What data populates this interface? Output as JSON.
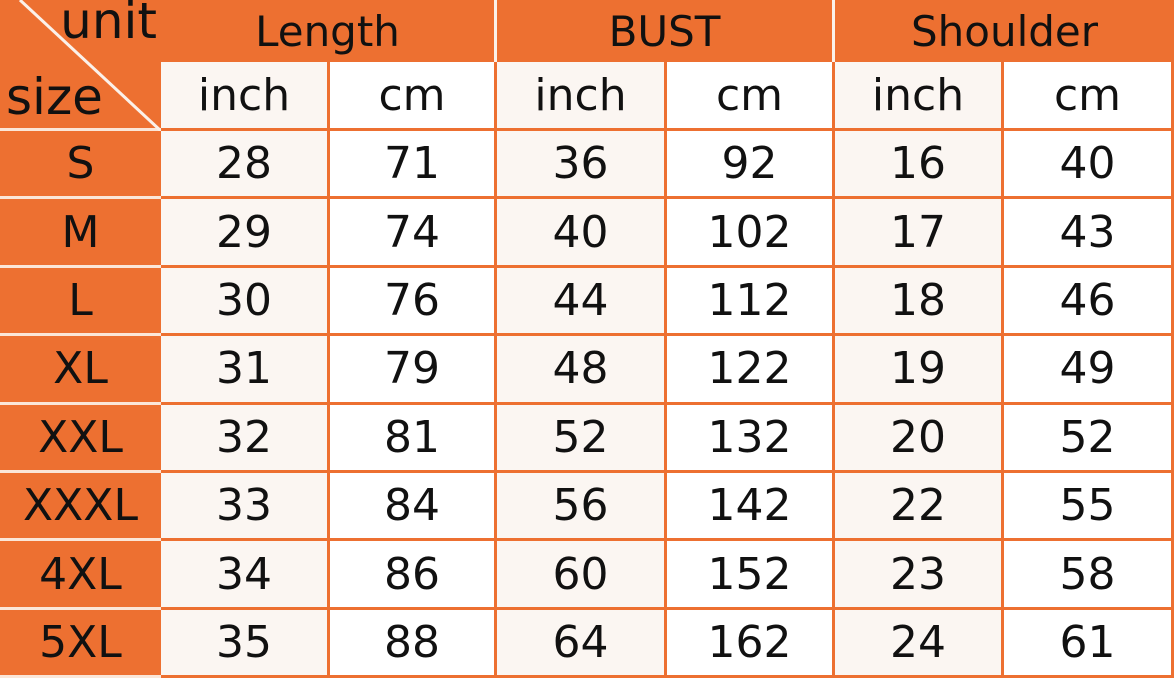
{
  "corner": {
    "unit_label": "unit",
    "size_label": "size"
  },
  "groups": [
    "Length",
    "BUST",
    "Shoulder"
  ],
  "units": [
    "inch",
    "cm",
    "inch",
    "cm",
    "inch",
    "cm"
  ],
  "rows": [
    {
      "size": "S",
      "values": [
        "28",
        "71",
        "36",
        "92",
        "16",
        "40"
      ]
    },
    {
      "size": "M",
      "values": [
        "29",
        "74",
        "40",
        "102",
        "17",
        "43"
      ]
    },
    {
      "size": "L",
      "values": [
        "30",
        "76",
        "44",
        "112",
        "18",
        "46"
      ]
    },
    {
      "size": "XL",
      "values": [
        "31",
        "79",
        "48",
        "122",
        "19",
        "49"
      ]
    },
    {
      "size": "XXL",
      "values": [
        "32",
        "81",
        "52",
        "132",
        "20",
        "52"
      ]
    },
    {
      "size": "XXXL",
      "values": [
        "33",
        "84",
        "56",
        "142",
        "22",
        "55"
      ]
    },
    {
      "size": "4XL",
      "values": [
        "34",
        "86",
        "60",
        "152",
        "23",
        "58"
      ]
    },
    {
      "size": "5XL",
      "values": [
        "35",
        "88",
        "64",
        "162",
        "24",
        "61"
      ]
    }
  ],
  "colors": {
    "header": "#ed7031",
    "inch_cell": "#fbf6f2",
    "cm_cell": "#ffffff"
  }
}
